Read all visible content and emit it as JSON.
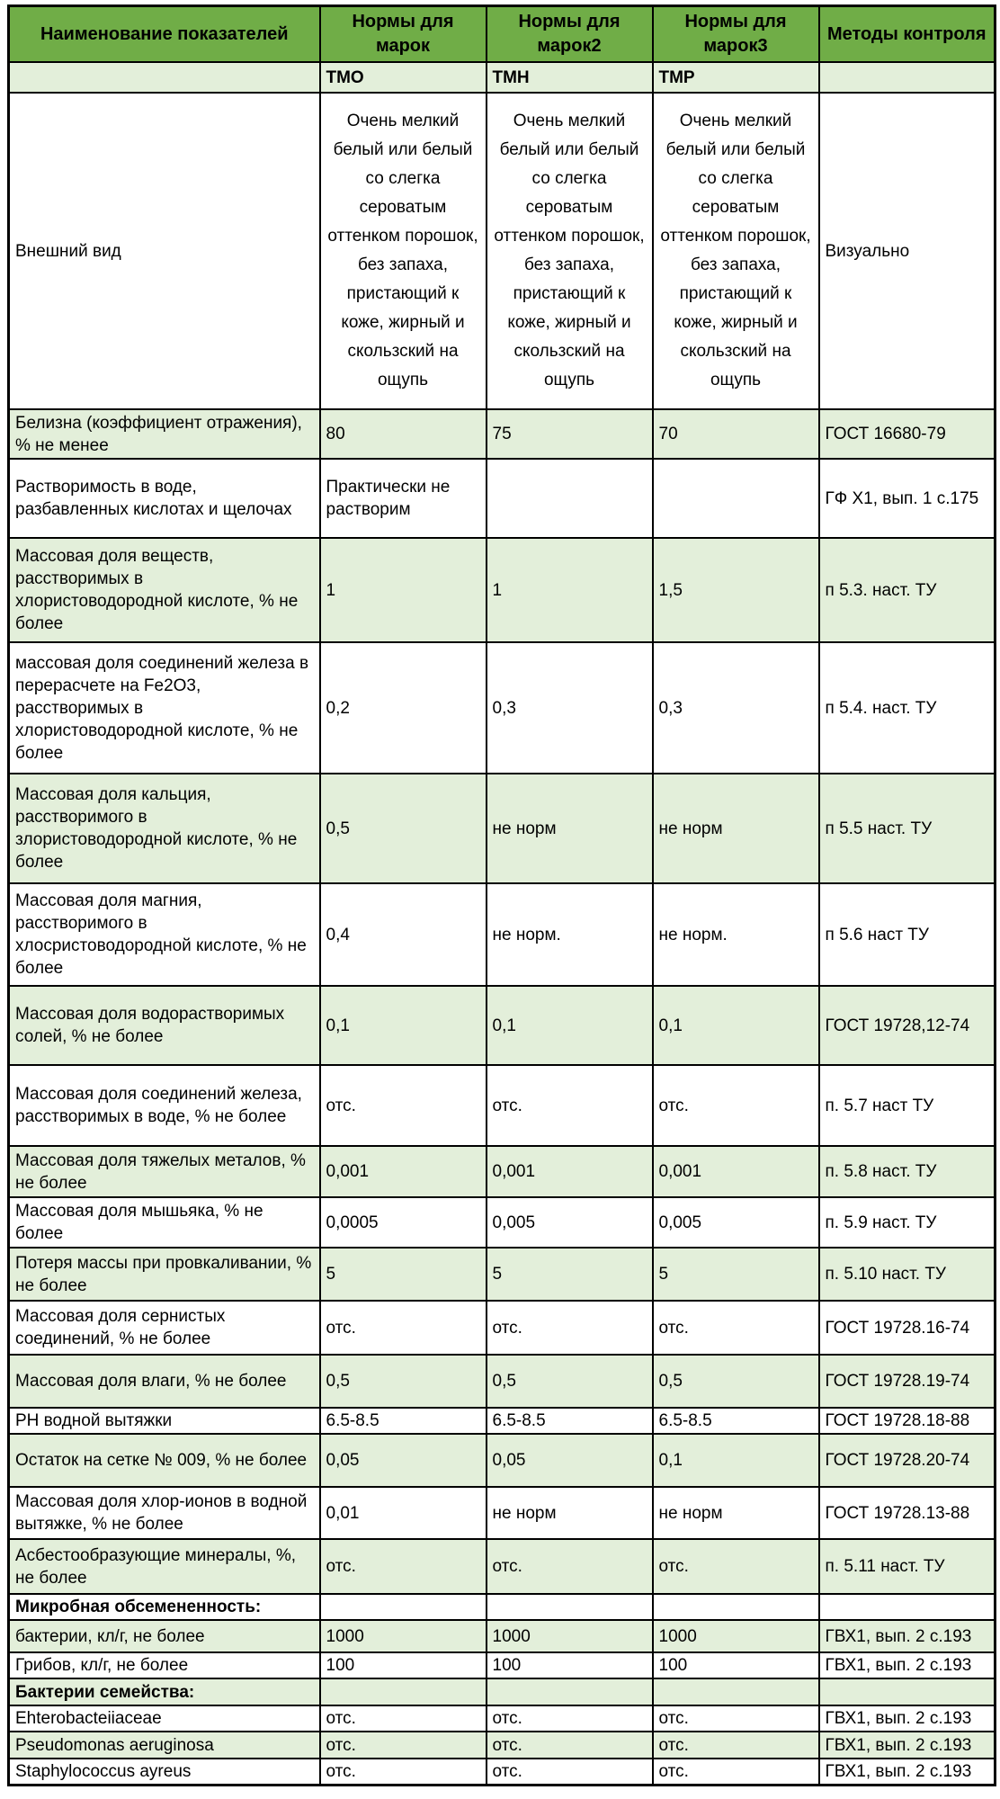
{
  "table": {
    "colors": {
      "header_bg": "#70AD47",
      "band_bg": "#E3EFDA",
      "border": "#000000",
      "text": "#000000"
    },
    "header": {
      "col_name": "Наименование показателей",
      "col_norm1": "Нормы для марок",
      "col_norm2": "Нормы для марок2",
      "col_norm3": "Нормы для марок3",
      "col_methods": "Методы контроля",
      "subheader": [
        "",
        "ТМО",
        "ТМН",
        "ТМР",
        ""
      ]
    },
    "rows": [
      {
        "name": "Внешний вид",
        "values": [
          "Очень мелкий белый или белый со слегка сероватым оттенком порошок, без запаха, пристающий к коже, жирный и скользский на ощупь",
          "Очень мелкий белый или белый со слегка сероватым оттенком порошок, без запаха, пристающий к коже, жирный и скользский на ощупь",
          "Очень мелкий белый или белый со слегка сероватым оттенком порошок, без запаха, пристающий к коже, жирный и скользский на ощупь"
        ],
        "method": "Визуально",
        "shaded": false,
        "bold": false
      },
      {
        "name": "Белизна (коэффициент отражения), % не менее",
        "values": [
          "80",
          "75",
          "70"
        ],
        "method": "ГОСТ 16680-79",
        "shaded": true,
        "bold": false
      },
      {
        "name": "Растворимость в воде, разбавленных кислотах и щелочах",
        "values": [
          "Практически не растворим",
          "",
          ""
        ],
        "method": "ГФ Х1, вып. 1 с.175",
        "shaded": false,
        "bold": false
      },
      {
        "name": "Массовая доля веществ, расстворимых в хлористоводородной кислоте, % не более",
        "values": [
          "1",
          "1",
          "1,5"
        ],
        "method": "п 5.3. наст. ТУ",
        "shaded": true,
        "bold": false
      },
      {
        "name": "массовая доля соединений железа в перерасчете на Fe2O3, расстворимых в хлористоводородной кислоте, % не более",
        "values": [
          "0,2",
          "0,3",
          "0,3"
        ],
        "method": "п 5.4. наст. ТУ",
        "shaded": false,
        "bold": false
      },
      {
        "name": "Массовая доля кальция, расстворимого в злористоводородной кислоте, % не более",
        "values": [
          "0,5",
          "не норм",
          "не норм"
        ],
        "method": "п 5.5 наст. ТУ",
        "shaded": true,
        "bold": false
      },
      {
        "name": "Массовая доля магния, расстворимого в хлосристоводородной кислоте, % не более",
        "values": [
          "0,4",
          "не норм.",
          "не норм."
        ],
        "method": "п 5.6 наст ТУ",
        "shaded": false,
        "bold": false
      },
      {
        "name": "Массовая доля водорастворимых солей, % не более",
        "values": [
          "0,1",
          "0,1",
          "0,1"
        ],
        "method": "ГОСТ 19728,12-74",
        "shaded": true,
        "bold": false
      },
      {
        "name": "Массовая доля соединений железа, расстворимых в воде, % не более",
        "values": [
          "отс.",
          "отс.",
          "отс."
        ],
        "method": "п. 5.7 наст ТУ",
        "shaded": false,
        "bold": false
      },
      {
        "name": "Массовая доля тяжелых металов, % не более",
        "values": [
          "0,001",
          "0,001",
          "0,001"
        ],
        "method": "п. 5.8 наст. ТУ",
        "shaded": true,
        "bold": false
      },
      {
        "name": "Массовая доля мышьяка, % не более",
        "values": [
          "0,0005",
          "0,005",
          "0,005"
        ],
        "method": "п. 5.9 наст. ТУ",
        "shaded": false,
        "bold": false
      },
      {
        "name": "Потеря массы при провкаливании, % не более",
        "values": [
          "5",
          "5",
          "5"
        ],
        "method": "п. 5.10 наст. ТУ",
        "shaded": true,
        "bold": false
      },
      {
        "name": "Массовая доля сернистых соединений, % не более",
        "values": [
          "отс.",
          "отс.",
          "отс."
        ],
        "method": "ГОСТ 19728.16-74",
        "shaded": false,
        "bold": false
      },
      {
        "name": "Массовая доля влаги, % не более",
        "values": [
          "0,5",
          "0,5",
          "0,5"
        ],
        "method": "ГОСТ 19728.19-74",
        "shaded": true,
        "bold": false
      },
      {
        "name": "РН водной вытяжки",
        "values": [
          "6.5-8.5",
          "6.5-8.5",
          "6.5-8.5"
        ],
        "method": "ГОСТ 19728.18-88",
        "shaded": false,
        "bold": false
      },
      {
        "name": "Остаток на сетке № 009, % не более",
        "values": [
          "0,05",
          "0,05",
          "0,1"
        ],
        "method": "ГОСТ 19728.20-74",
        "shaded": true,
        "bold": false
      },
      {
        "name": "Массовая доля хлор-ионов в водной вытяжке, % не более",
        "values": [
          "0,01",
          "не норм",
          "не норм"
        ],
        "method": "ГОСТ 19728.13-88",
        "shaded": false,
        "bold": false
      },
      {
        "name": "Асбестообразующие минералы, %, не более",
        "values": [
          "отс.",
          "отс.",
          "отс."
        ],
        "method": "п. 5.11 наст. ТУ",
        "shaded": true,
        "bold": false
      },
      {
        "name": "Микробная обсемененность:",
        "values": [
          "",
          "",
          ""
        ],
        "method": "",
        "shaded": false,
        "bold": true
      },
      {
        "name": "бактерии, кл/г, не более",
        "values": [
          "1000",
          "1000",
          "1000"
        ],
        "method": "ГВХ1, вып. 2 с.193",
        "shaded": true,
        "bold": false
      },
      {
        "name": "Грибов, кл/г, не более",
        "values": [
          "100",
          "100",
          "100"
        ],
        "method": "ГВХ1, вып. 2 с.193",
        "shaded": false,
        "bold": false
      },
      {
        "name": "Бактерии семейства:",
        "values": [
          "",
          "",
          ""
        ],
        "method": "",
        "shaded": true,
        "bold": true
      },
      {
        "name": "Ehterobacteiiaceae",
        "values": [
          "отс.",
          "отс.",
          "отс."
        ],
        "method": "ГВХ1, вып. 2 с.193",
        "shaded": false,
        "bold": false
      },
      {
        "name": "Pseudomonas aeruginosa",
        "values": [
          "отс.",
          "отс.",
          "отс."
        ],
        "method": "ГВХ1, вып. 2 с.193",
        "shaded": true,
        "bold": false
      },
      {
        "name": "Staphylococcus ayreus",
        "values": [
          "отс.",
          "отс.",
          "отс."
        ],
        "method": "ГВХ1, вып. 2 с.193",
        "shaded": false,
        "bold": false
      }
    ]
  }
}
